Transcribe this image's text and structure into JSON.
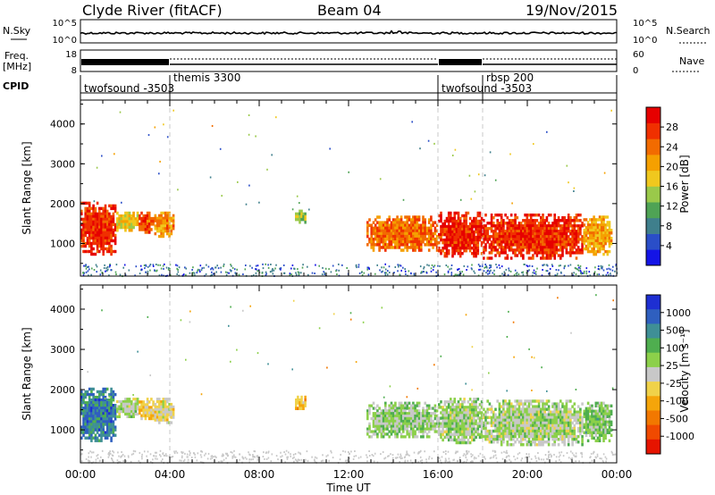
{
  "header": {
    "station": "Clyde River (fitACF)",
    "beam": "Beam 04",
    "date": "19/Nov/2015"
  },
  "summary": {
    "nsky_label": "N.Sky",
    "nsky_ticks": [
      "10^5",
      "10^0"
    ],
    "nsearch_label": "N.Search",
    "nsearch_ticks": [
      "10^5",
      "10^0"
    ],
    "freq_label_1": "Freq.",
    "freq_label_2": "[MHz]",
    "freq_ticks": [
      "18",
      "8"
    ],
    "nave_label": "Nave",
    "nave_ticks": [
      "60",
      "0"
    ],
    "cpid_label": "CPID"
  },
  "cpid_segments": [
    {
      "start": 0,
      "end": 4,
      "name": "twofsound -3503",
      "level": "low"
    },
    {
      "start": 4,
      "end": 16,
      "name": "themis 3300",
      "level": "high"
    },
    {
      "start": 16,
      "end": 18,
      "name": "twofsound -3503",
      "level": "low"
    },
    {
      "start": 18,
      "end": 24,
      "name": "rbsp 200",
      "level": "high"
    }
  ],
  "axes": {
    "x_ticks": [
      "00:00",
      "04:00",
      "08:00",
      "12:00",
      "16:00",
      "20:00",
      "00:00"
    ],
    "x_label": "Time UT",
    "y_label": "Slant Range [km]",
    "y_ticks": [
      "1000",
      "2000",
      "3000",
      "4000"
    ],
    "x_range": [
      0,
      24
    ],
    "y_range": [
      180,
      4600
    ]
  },
  "power_scale": {
    "label": "Power [dB]",
    "ticks": [
      "4",
      "8",
      "12",
      "16",
      "20",
      "24",
      "28"
    ],
    "colors": [
      "#1414e6",
      "#2a4ec8",
      "#3f7f8c",
      "#4fa355",
      "#9ac94a",
      "#f0c81e",
      "#f5a000",
      "#f26b00",
      "#f03000",
      "#e60000"
    ]
  },
  "velocity_scale": {
    "label": "Velocity [m s⁻¹]",
    "ticks": [
      "1000",
      "500",
      "100",
      "25",
      "-25",
      "-100",
      "-500",
      "-1000"
    ],
    "colors": [
      "#1e2fd2",
      "#2f5fbf",
      "#3f8f96",
      "#4fae4f",
      "#8cd04a",
      "#c8c8c8",
      "#f0d24a",
      "#f5a50a",
      "#f27800",
      "#f04a00",
      "#e61400"
    ]
  },
  "chart_data": [
    {
      "type": "heatmap",
      "panel": "power",
      "xlabel": "Time UT",
      "ylabel": "Slant Range [km]",
      "xlim": [
        0,
        24
      ],
      "ylim": [
        180,
        4600
      ],
      "colorbar_label": "Power [dB]",
      "echo_regions": [
        {
          "t0": 0.0,
          "t1": 1.6,
          "r0": 700,
          "r1": 2050,
          "value": 28
        },
        {
          "t0": 1.6,
          "t1": 2.6,
          "r0": 1300,
          "r1": 1800,
          "value": 18
        },
        {
          "t0": 2.6,
          "t1": 3.3,
          "r0": 1250,
          "r1": 1800,
          "value": 26
        },
        {
          "t0": 3.3,
          "t1": 4.2,
          "r0": 1150,
          "r1": 1800,
          "value": 22
        },
        {
          "t0": 9.6,
          "t1": 10.1,
          "r0": 1500,
          "r1": 1850,
          "value": 14
        },
        {
          "t0": 12.8,
          "t1": 16.0,
          "r0": 800,
          "r1": 1700,
          "value": 24
        },
        {
          "t0": 16.0,
          "t1": 18.0,
          "r0": 650,
          "r1": 1800,
          "value": 28
        },
        {
          "t0": 18.0,
          "t1": 22.5,
          "r0": 600,
          "r1": 1750,
          "value": 28
        },
        {
          "t0": 22.5,
          "t1": 23.8,
          "r0": 700,
          "r1": 1700,
          "value": 20
        }
      ]
    },
    {
      "type": "heatmap",
      "panel": "velocity",
      "xlabel": "Time UT",
      "ylabel": "Slant Range [km]",
      "xlim": [
        0,
        24
      ],
      "ylim": [
        180,
        4600
      ],
      "colorbar_label": "Velocity [m s⁻¹]",
      "echo_regions": [
        {
          "t0": 0.0,
          "t1": 1.6,
          "r0": 700,
          "r1": 2050,
          "value": 800
        },
        {
          "t0": 1.6,
          "t1": 2.6,
          "r0": 1300,
          "r1": 1800,
          "value": 100
        },
        {
          "t0": 2.6,
          "t1": 3.3,
          "r0": 1250,
          "r1": 1800,
          "value": -300
        },
        {
          "t0": 3.3,
          "t1": 4.2,
          "r0": 1150,
          "r1": 1800,
          "value": -150
        },
        {
          "t0": 9.6,
          "t1": 10.1,
          "r0": 1500,
          "r1": 1850,
          "value": -400
        },
        {
          "t0": 12.8,
          "t1": 16.0,
          "r0": 800,
          "r1": 1700,
          "value": 200
        },
        {
          "t0": 16.0,
          "t1": 18.0,
          "r0": 650,
          "r1": 1800,
          "value": 150
        },
        {
          "t0": 18.0,
          "t1": 22.5,
          "r0": 600,
          "r1": 1750,
          "value": 120
        },
        {
          "t0": 22.5,
          "t1": 23.8,
          "r0": 700,
          "r1": 1700,
          "value": 300
        }
      ]
    }
  ]
}
